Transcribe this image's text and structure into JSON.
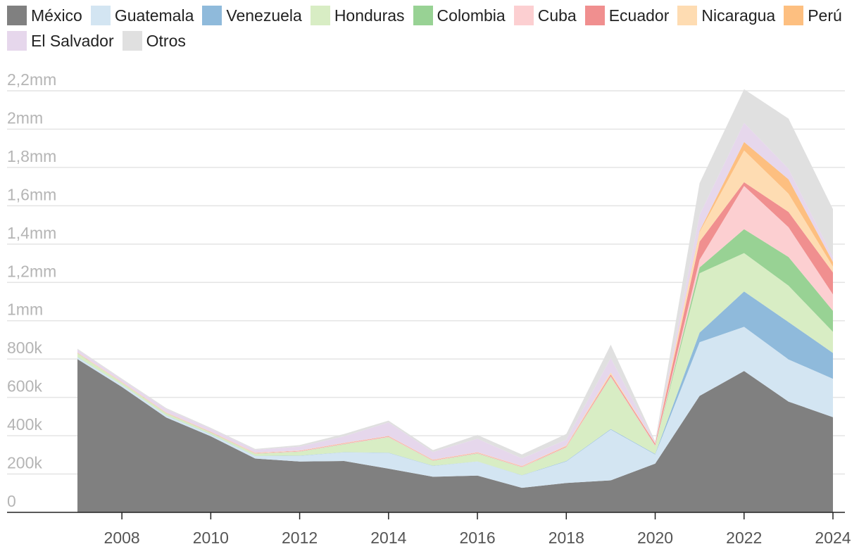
{
  "chart_data": {
    "type": "area",
    "stacked": true,
    "x": [
      2007,
      2008,
      2009,
      2010,
      2011,
      2012,
      2013,
      2014,
      2015,
      2016,
      2017,
      2018,
      2019,
      2020,
      2021,
      2022,
      2023,
      2024
    ],
    "x_ticks": [
      "2008",
      "2010",
      "2012",
      "2014",
      "2016",
      "2018",
      "2020",
      "2022",
      "2024"
    ],
    "y_ticks": [
      {
        "value": 0,
        "label": "0"
      },
      {
        "value": 200000,
        "label": "200k"
      },
      {
        "value": 400000,
        "label": "400k"
      },
      {
        "value": 600000,
        "label": "600k"
      },
      {
        "value": 800000,
        "label": "800k"
      },
      {
        "value": 1000000,
        "label": "1mm"
      },
      {
        "value": 1200000,
        "label": "1,2mm"
      },
      {
        "value": 1400000,
        "label": "1,4mm"
      },
      {
        "value": 1600000,
        "label": "1,6mm"
      },
      {
        "value": 1800000,
        "label": "1,8mm"
      },
      {
        "value": 2000000,
        "label": "2mm"
      },
      {
        "value": 2200000,
        "label": "2,2mm"
      }
    ],
    "ylim": [
      0,
      2200000
    ],
    "grid": true,
    "legend_position": "top",
    "series": [
      {
        "name": "México",
        "color": "#808080",
        "values": [
          800000,
          655000,
          495000,
          397000,
          281000,
          265000,
          268000,
          228000,
          186000,
          192000,
          128000,
          153000,
          167000,
          254000,
          608000,
          738000,
          578000,
          497000
        ]
      },
      {
        "name": "Guatemala",
        "color": "#d3e5f2",
        "values": [
          10000,
          10000,
          10000,
          10000,
          13000,
          30000,
          45000,
          82000,
          56000,
          73000,
          65000,
          113000,
          265000,
          48000,
          280000,
          230000,
          220000,
          200000
        ]
      },
      {
        "name": "Venezuela",
        "color": "#8fbadb",
        "values": [
          1000,
          1000,
          1000,
          1000,
          1000,
          1000,
          1000,
          1000,
          1000,
          1000,
          1000,
          2000,
          3000,
          3000,
          50000,
          185000,
          195000,
          135000
        ]
      },
      {
        "name": "Honduras",
        "color": "#d8edc4",
        "values": [
          18000,
          10000,
          10000,
          8000,
          10000,
          20000,
          40000,
          80000,
          25000,
          40000,
          40000,
          70000,
          270000,
          40000,
          310000,
          200000,
          190000,
          110000
        ]
      },
      {
        "name": "Colombia",
        "color": "#98d294",
        "values": [
          1000,
          1000,
          1000,
          1000,
          1000,
          1000,
          1000,
          1000,
          1000,
          1000,
          1000,
          1000,
          2000,
          1000,
          30000,
          125000,
          150000,
          110000
        ]
      },
      {
        "name": "Cuba",
        "color": "#fccfd1",
        "values": [
          1000,
          1000,
          1000,
          1000,
          2000,
          2000,
          3000,
          3000,
          2000,
          3000,
          3000,
          3000,
          4000,
          4000,
          40000,
          225000,
          155000,
          85000
        ]
      },
      {
        "name": "Ecuador",
        "color": "#f08f8f",
        "values": [
          1000,
          1000,
          1000,
          1000,
          1000,
          2000,
          2000,
          2000,
          2000,
          2000,
          2000,
          3000,
          8000,
          8000,
          95000,
          20000,
          80000,
          115000
        ]
      },
      {
        "name": "Nicaragua",
        "color": "#fedcb2",
        "values": [
          1000,
          1000,
          1000,
          1000,
          1000,
          1000,
          1000,
          1000,
          1000,
          1000,
          1000,
          3000,
          10000,
          2000,
          50000,
          165000,
          95000,
          30000
        ]
      },
      {
        "name": "Perú",
        "color": "#fdbf80",
        "values": [
          1000,
          1000,
          1000,
          1000,
          1000,
          1000,
          1000,
          1000,
          1000,
          1000,
          1000,
          1000,
          1000,
          1000,
          5000,
          45000,
          75000,
          25000
        ]
      },
      {
        "name": "El Salvador",
        "color": "#e6d7ec",
        "values": [
          15000,
          12000,
          18000,
          15000,
          15000,
          20000,
          35000,
          70000,
          40000,
          70000,
          40000,
          30000,
          75000,
          5000,
          85000,
          100000,
          55000,
          25000
        ]
      },
      {
        "name": "Otros",
        "color": "#e0e0e0",
        "values": [
          5000,
          5000,
          5000,
          5000,
          5000,
          8000,
          12000,
          10000,
          10000,
          20000,
          20000,
          30000,
          70000,
          5000,
          165000,
          175000,
          262000,
          250000
        ]
      }
    ]
  }
}
